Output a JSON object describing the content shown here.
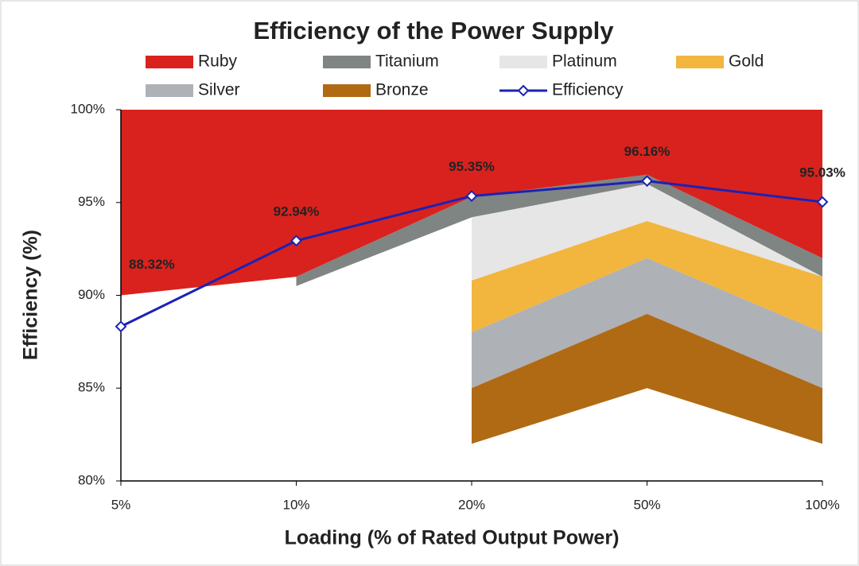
{
  "chart_data": {
    "type": "area",
    "title": "Efficiency of the Power Supply",
    "x_label": "Loading (% of Rated Output Power)",
    "y_label": "Efficiency (%)",
    "categories": [
      "5%",
      "10%",
      "20%",
      "50%",
      "100%"
    ],
    "ylim": [
      80,
      100
    ],
    "yticks": [
      {
        "value": 80,
        "label": "80%"
      },
      {
        "value": 85,
        "label": "85%"
      },
      {
        "value": 90,
        "label": "90%"
      },
      {
        "value": 95,
        "label": "95%"
      },
      {
        "value": 100,
        "label": "100%"
      }
    ],
    "grid": false,
    "series": [
      {
        "name": "Ruby",
        "type": "band",
        "color": "#d9221e",
        "values": [
          100,
          100,
          100,
          100,
          100
        ],
        "lows": [
          90,
          91,
          95.3,
          96.5,
          92
        ]
      },
      {
        "name": "Titanium",
        "type": "band",
        "color": "#7f8583",
        "values": [
          null,
          91,
          95.3,
          96.5,
          92
        ],
        "lows": [
          null,
          90.5,
          94.2,
          96,
          91
        ]
      },
      {
        "name": "Platinum",
        "type": "band",
        "color": "#e6e6e6",
        "values": [
          null,
          null,
          94.2,
          96,
          91
        ],
        "lows": [
          null,
          null,
          90.8,
          94,
          91
        ]
      },
      {
        "name": "Gold",
        "type": "band",
        "color": "#f2b53e",
        "values": [
          null,
          null,
          90.8,
          94,
          91
        ],
        "lows": [
          null,
          null,
          88,
          92,
          88
        ]
      },
      {
        "name": "Silver",
        "type": "band",
        "color": "#aeb1b6",
        "values": [
          null,
          null,
          88,
          92,
          88
        ],
        "lows": [
          null,
          null,
          85,
          89,
          85
        ]
      },
      {
        "name": "Bronze",
        "type": "band",
        "color": "#b06a14",
        "values": [
          null,
          null,
          85,
          89,
          85
        ],
        "lows": [
          null,
          null,
          82,
          85,
          82
        ]
      },
      {
        "name": "Efficiency",
        "type": "line",
        "color": "#1c22b4",
        "values": [
          88.32,
          92.94,
          95.35,
          96.16,
          95.03
        ],
        "value_labels": [
          "88.32%",
          "92.94%",
          "95.35%",
          "96.16%",
          "95.03%"
        ]
      }
    ]
  }
}
